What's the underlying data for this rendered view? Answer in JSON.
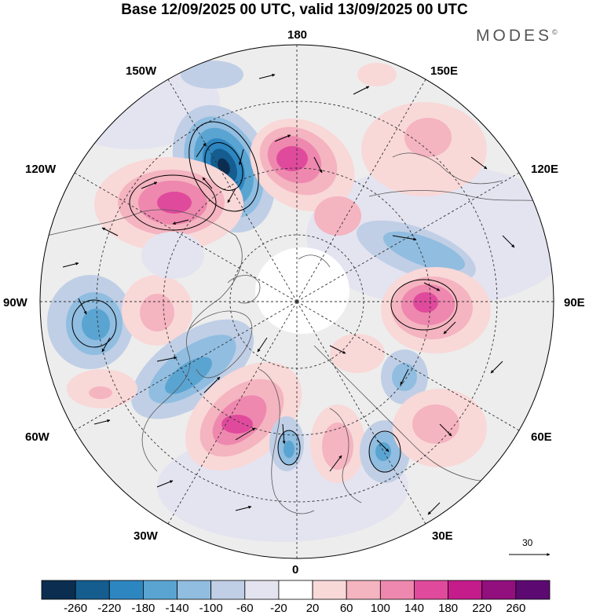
{
  "title": "Base 12/09/2025 00 UTC, valid 13/09/2025 00 UTC",
  "brand": "MODES",
  "brand_mark": "©",
  "longitude_labels": {
    "n180": "180",
    "w150": "150W",
    "e150": "150E",
    "w120": "120W",
    "e120": "120E",
    "w90": "90W",
    "e90": "90E",
    "w60": "60W",
    "e60": "60E",
    "w30": "30W",
    "e30": "30E",
    "s0": "0"
  },
  "reference_vector": {
    "value": "30"
  },
  "colorbar": {
    "colors": [
      "#0b2e50",
      "#155d8f",
      "#2d86c0",
      "#5aa4d2",
      "#90bde0",
      "#c0cfe6",
      "#e4e3f0",
      "#ffffff",
      "#f9d8d8",
      "#f4b4c0",
      "#ee88ae",
      "#e04a9c",
      "#c51c8c",
      "#920f7e",
      "#5c0a72"
    ],
    "labels": [
      "-260",
      "-220",
      "-180",
      "-140",
      "-100",
      "-60",
      "-20",
      "20",
      "60",
      "100",
      "140",
      "180",
      "220",
      "260"
    ]
  },
  "chart_data": {
    "type": "heatmap",
    "description_title": "Base 12/09/2025 00 UTC, valid 13/09/2025 00 UTC",
    "projection": "north polar stereographic",
    "units_range": [
      -260,
      260
    ],
    "anomaly_centers": [
      {
        "name": "negative-150W",
        "value": -220
      },
      {
        "name": "positive-170E",
        "value": 180
      },
      {
        "name": "positive-120W",
        "value": 170
      },
      {
        "name": "positive-90E",
        "value": 180
      },
      {
        "name": "negative-100E",
        "value": -120
      },
      {
        "name": "negative-95W",
        "value": -140
      },
      {
        "name": "positive-50W",
        "value": 180
      },
      {
        "name": "negative-60W",
        "value": -140
      },
      {
        "name": "negative-20E",
        "value": -140
      },
      {
        "name": "negative-5W",
        "value": -140
      },
      {
        "name": "positive-10E",
        "value": 100
      },
      {
        "name": "positive-60E",
        "value": 100
      }
    ]
  }
}
